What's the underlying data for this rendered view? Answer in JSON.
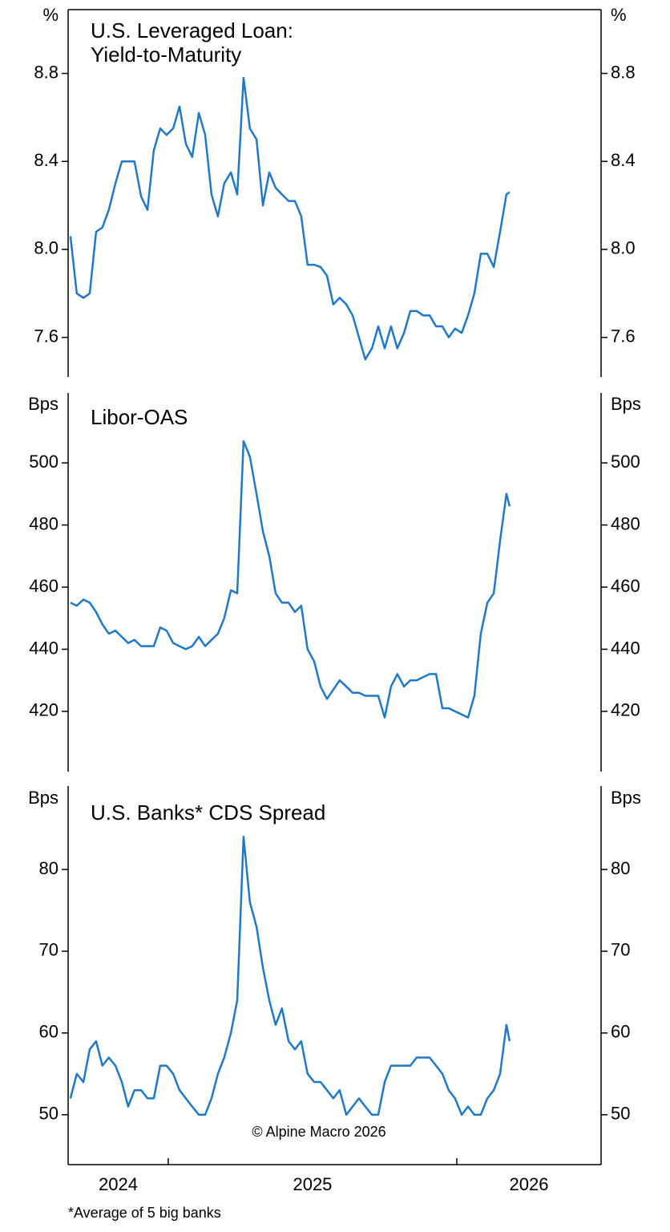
{
  "chart_data": [
    {
      "type": "line",
      "title": [
        "U.S. Leveraged Loan:",
        "Yield-to-Maturity"
      ],
      "y_unit": "%",
      "xlim": [
        2024.653,
        2026.5
      ],
      "ylim": [
        7.42,
        9.09
      ],
      "yticks": [
        {
          "value": 7.6,
          "label": "7.6"
        },
        {
          "value": 8,
          "label": "8.0"
        },
        {
          "value": 8.4,
          "label": "8.4"
        },
        {
          "value": 8.8,
          "label": "8.8"
        }
      ],
      "x": [
        2024.661,
        2024.683,
        2024.706,
        2024.728,
        2024.75,
        2024.772,
        2024.794,
        2024.817,
        2024.839,
        2024.861,
        2024.883,
        2024.906,
        2024.928,
        2024.95,
        2024.972,
        2024.994,
        2025.017,
        2025.039,
        2025.061,
        2025.083,
        2025.106,
        2025.128,
        2025.15,
        2025.172,
        2025.194,
        2025.217,
        2025.239,
        2025.261,
        2025.283,
        2025.306,
        2025.328,
        2025.35,
        2025.372,
        2025.394,
        2025.417,
        2025.439,
        2025.461,
        2025.483,
        2025.506,
        2025.528,
        2025.55,
        2025.572,
        2025.594,
        2025.617,
        2025.639,
        2025.661,
        2025.683,
        2025.706,
        2025.728,
        2025.75,
        2025.772,
        2025.794,
        2025.817,
        2025.839,
        2025.861,
        2025.883,
        2025.906,
        2025.928,
        2025.95,
        2025.972,
        2025.994,
        2026.017,
        2026.039,
        2026.061,
        2026.083,
        2026.106,
        2026.128,
        2026.15,
        2026.172,
        2026.183
      ],
      "series": [
        {
          "color": "#1f78c8",
          "values": [
            8.06,
            7.8,
            7.78,
            7.8,
            8.08,
            8.1,
            8.18,
            8.3,
            8.4,
            8.4,
            8.4,
            8.24,
            8.18,
            8.45,
            8.55,
            8.52,
            8.55,
            8.65,
            8.48,
            8.42,
            8.62,
            8.52,
            8.25,
            8.15,
            8.3,
            8.35,
            8.25,
            8.78,
            8.55,
            8.5,
            8.2,
            8.35,
            8.28,
            8.25,
            8.22,
            8.22,
            8.15,
            7.93,
            7.93,
            7.92,
            7.88,
            7.75,
            7.78,
            7.75,
            7.7,
            7.6,
            7.5,
            7.55,
            7.65,
            7.55,
            7.65,
            7.55,
            7.62,
            7.72,
            7.72,
            7.7,
            7.7,
            7.65,
            7.65,
            7.6,
            7.64,
            7.62,
            7.7,
            7.8,
            7.98,
            7.98,
            7.92,
            8.08,
            8.25,
            8.26
          ]
        }
      ]
    },
    {
      "type": "line",
      "title": [
        "Libor-OAS"
      ],
      "y_unit": "Bps",
      "xlim": [
        2024.653,
        2026.5
      ],
      "ylim": [
        400.6,
        522.5
      ],
      "yticks": [
        420,
        440,
        460,
        480,
        500
      ],
      "x": [
        2024.661,
        2024.683,
        2024.706,
        2024.728,
        2024.75,
        2024.772,
        2024.794,
        2024.817,
        2024.839,
        2024.861,
        2024.883,
        2024.906,
        2024.928,
        2024.95,
        2024.972,
        2024.994,
        2025.017,
        2025.039,
        2025.061,
        2025.083,
        2025.106,
        2025.128,
        2025.15,
        2025.172,
        2025.194,
        2025.217,
        2025.239,
        2025.261,
        2025.283,
        2025.306,
        2025.328,
        2025.35,
        2025.372,
        2025.394,
        2025.417,
        2025.439,
        2025.461,
        2025.483,
        2025.506,
        2025.528,
        2025.55,
        2025.572,
        2025.594,
        2025.617,
        2025.639,
        2025.661,
        2025.683,
        2025.706,
        2025.728,
        2025.75,
        2025.772,
        2025.794,
        2025.817,
        2025.839,
        2025.861,
        2025.883,
        2025.906,
        2025.928,
        2025.95,
        2025.972,
        2025.994,
        2026.017,
        2026.039,
        2026.061,
        2026.083,
        2026.106,
        2026.128,
        2026.15,
        2026.172,
        2026.183
      ],
      "series": [
        {
          "color": "#1f78c8",
          "values": [
            455,
            454,
            456,
            455,
            452,
            448,
            445,
            446,
            444,
            442,
            443,
            441,
            441,
            441,
            447,
            446,
            442,
            441,
            440,
            441,
            444,
            441,
            443,
            445,
            450,
            459,
            458,
            507,
            502,
            490,
            478,
            470,
            458,
            455,
            455,
            452,
            454,
            440,
            436,
            428,
            424,
            427,
            430,
            428,
            426,
            426,
            425,
            425,
            425,
            418,
            428,
            432,
            428,
            430,
            430,
            431,
            432,
            432,
            421,
            421,
            420,
            419,
            418,
            425,
            445,
            455,
            458,
            475,
            490,
            486
          ]
        }
      ]
    },
    {
      "type": "line",
      "title": [
        "U.S. Banks* CDS Spread"
      ],
      "y_unit": "Bps",
      "annotation": "© Alpine Macro 2026",
      "xlim": [
        2024.653,
        2026.5
      ],
      "ylim": [
        43.9,
        90.2
      ],
      "xticks": [
        2024,
        2025,
        2026
      ],
      "yticks": [
        50,
        60,
        70,
        80
      ],
      "x": [
        2024.661,
        2024.683,
        2024.706,
        2024.728,
        2024.75,
        2024.772,
        2024.794,
        2024.817,
        2024.839,
        2024.861,
        2024.883,
        2024.906,
        2024.928,
        2024.95,
        2024.972,
        2024.994,
        2025.017,
        2025.039,
        2025.061,
        2025.083,
        2025.106,
        2025.128,
        2025.15,
        2025.172,
        2025.194,
        2025.217,
        2025.239,
        2025.261,
        2025.283,
        2025.306,
        2025.328,
        2025.35,
        2025.372,
        2025.394,
        2025.417,
        2025.439,
        2025.461,
        2025.483,
        2025.506,
        2025.528,
        2025.55,
        2025.572,
        2025.594,
        2025.617,
        2025.639,
        2025.661,
        2025.683,
        2025.706,
        2025.728,
        2025.75,
        2025.772,
        2025.794,
        2025.817,
        2025.839,
        2025.861,
        2025.883,
        2025.906,
        2025.928,
        2025.95,
        2025.972,
        2025.994,
        2026.017,
        2026.039,
        2026.061,
        2026.083,
        2026.106,
        2026.128,
        2026.15,
        2026.172,
        2026.183
      ],
      "series": [
        {
          "color": "#1f78c8",
          "values": [
            52,
            55,
            54,
            58,
            59,
            56,
            57,
            56,
            54,
            51,
            53,
            53,
            52,
            52,
            56,
            56,
            55,
            53,
            52,
            51,
            50,
            50,
            52,
            55,
            57,
            60,
            64,
            84,
            76,
            73,
            68,
            64,
            61,
            63,
            59,
            58,
            59,
            55,
            54,
            54,
            53,
            52,
            53,
            50,
            51,
            52,
            51,
            50,
            50,
            54,
            56,
            56,
            56,
            56,
            57,
            57,
            57,
            56,
            55,
            53,
            52,
            50,
            51,
            50,
            50,
            52,
            53,
            55,
            61,
            59
          ]
        }
      ]
    }
  ],
  "footnote": "*Average of 5 big banks"
}
